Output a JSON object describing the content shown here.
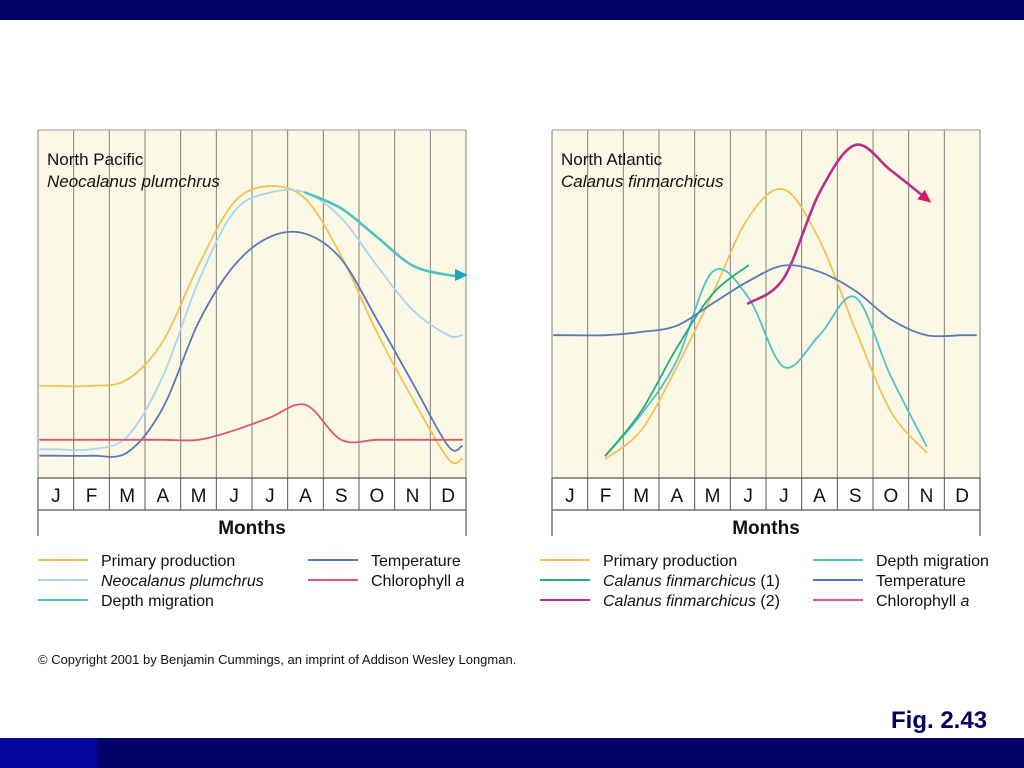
{
  "copyright": "© Copyright 2001 by Benjamin Cummings, an imprint of Addison Wesley Longman.",
  "figure_label": "Fig. 2.43",
  "colors": {
    "slide_bar": "#000066",
    "figure_label": "#000066",
    "panel_bg": "#fbf9e6",
    "primary_production": "#f5c152",
    "neocalanus": "#a9d7ef",
    "depth_migration": "#4fc2c4",
    "temperature": "#5a78b8",
    "chlorophyll": "#e05579",
    "calanus_1": "#21b07a",
    "calanus_2": "#b62d8d",
    "arrow_north_pacific": "#17a9b4",
    "arrow_north_atlantic": "#d81563"
  },
  "chart_data": [
    {
      "type": "line",
      "region": "North Pacific",
      "species": "Neocalanus plumchrus",
      "xlabel": "Months",
      "ylabel": "",
      "y_scale": "relative (0 = baseline, 1 = top of panel); no numeric axis",
      "grid": true,
      "categories": [
        "J",
        "F",
        "M",
        "A",
        "M",
        "J",
        "J",
        "A",
        "S",
        "O",
        "N",
        "D"
      ],
      "series": [
        {
          "name": "Primary production",
          "color_key": "primary_production",
          "values": [
            0.24,
            0.24,
            0.26,
            0.38,
            0.62,
            0.82,
            0.87,
            0.83,
            0.65,
            0.41,
            0.2,
            0.01
          ],
          "dashed": false
        },
        {
          "name": "Neocalanus plumchrus",
          "color_key": "neocalanus",
          "italic": true,
          "values": [
            0.04,
            0.04,
            0.08,
            0.27,
            0.57,
            0.79,
            0.85,
            0.85,
            0.77,
            0.62,
            0.48,
            0.4
          ],
          "dashed": false
        },
        {
          "name": "Depth migration",
          "color_key": "depth_migration",
          "values": [
            null,
            null,
            null,
            null,
            null,
            null,
            null,
            0.85,
            0.8,
            0.71,
            0.62,
            0.59
          ],
          "arrow": "end",
          "arrow_color_key": "arrow_north_pacific"
        },
        {
          "name": "Temperature",
          "color_key": "temperature",
          "values": [
            0.02,
            0.02,
            0.03,
            0.17,
            0.44,
            0.62,
            0.71,
            0.72,
            0.64,
            0.45,
            0.25,
            0.05
          ],
          "dashed": false
        },
        {
          "name": "Chlorophyll a",
          "name_plain": "Chlorophyll",
          "name_italic": "a",
          "color_key": "chlorophyll",
          "values": [
            0.07,
            0.07,
            0.07,
            0.07,
            0.07,
            0.1,
            0.14,
            0.18,
            0.07,
            0.07,
            0.07,
            0.07
          ],
          "dashed": false
        }
      ],
      "legend": [
        {
          "label": "Primary production",
          "color_key": "primary_production"
        },
        {
          "label": "Neocalanus plumchrus",
          "italic": true,
          "color_key": "neocalanus"
        },
        {
          "label": "Depth migration",
          "color_key": "depth_migration"
        },
        {
          "label": "Temperature",
          "color_key": "temperature"
        },
        {
          "label_plain": "Chlorophyll ",
          "label_italic": "a",
          "color_key": "chlorophyll"
        }
      ]
    },
    {
      "type": "line",
      "region": "North Atlantic",
      "species": "Calanus finmarchicus",
      "xlabel": "Months",
      "ylabel": "",
      "y_scale": "relative (0 = baseline, 1 = top of panel); no numeric axis",
      "grid": true,
      "categories": [
        "J",
        "F",
        "M",
        "A",
        "M",
        "J",
        "J",
        "A",
        "S",
        "O",
        "N",
        "D"
      ],
      "series": [
        {
          "name": "Primary production",
          "color_key": "primary_production",
          "values": [
            null,
            0.01,
            0.1,
            0.3,
            0.53,
            0.77,
            0.86,
            0.7,
            0.42,
            0.16,
            0.03,
            null
          ]
        },
        {
          "name": "Depth migration",
          "color_key": "depth_migration",
          "values": [
            null,
            0.02,
            0.15,
            0.32,
            0.6,
            0.52,
            0.3,
            0.4,
            0.52,
            0.27,
            0.05,
            null
          ]
        },
        {
          "name": "Calanus finmarchicus (1)",
          "color_key": "calanus_1",
          "values": [
            null,
            0.02,
            0.16,
            0.36,
            0.53,
            0.62,
            null,
            null,
            null,
            null,
            null,
            null
          ]
        },
        {
          "name": "Calanus finmarchicus (2)",
          "color_key": "calanus_2",
          "values": [
            null,
            null,
            null,
            null,
            null,
            0.5,
            0.58,
            0.85,
            1.0,
            0.92,
            0.83,
            null
          ],
          "arrow": "end",
          "arrow_color_key": "arrow_north_atlantic"
        },
        {
          "name": "Temperature",
          "color_key": "temperature",
          "values": [
            0.4,
            0.4,
            0.41,
            0.43,
            0.5,
            0.57,
            0.62,
            0.6,
            0.54,
            0.45,
            0.4,
            0.4
          ]
        }
      ],
      "legend": [
        {
          "label": "Primary production",
          "color_key": "primary_production"
        },
        {
          "label_italic": "Calanus finmarchicus",
          "label_plain": " (1)",
          "color_key": "calanus_1"
        },
        {
          "label_italic": "Calanus finmarchicus",
          "label_plain": " (2)",
          "color_key": "calanus_2"
        },
        {
          "label": "Depth migration",
          "color_key": "depth_migration"
        },
        {
          "label": "Temperature",
          "color_key": "temperature"
        },
        {
          "label_plain": "Chlorophyll ",
          "label_italic": "a",
          "color_key": "chlorophyll"
        }
      ]
    }
  ]
}
